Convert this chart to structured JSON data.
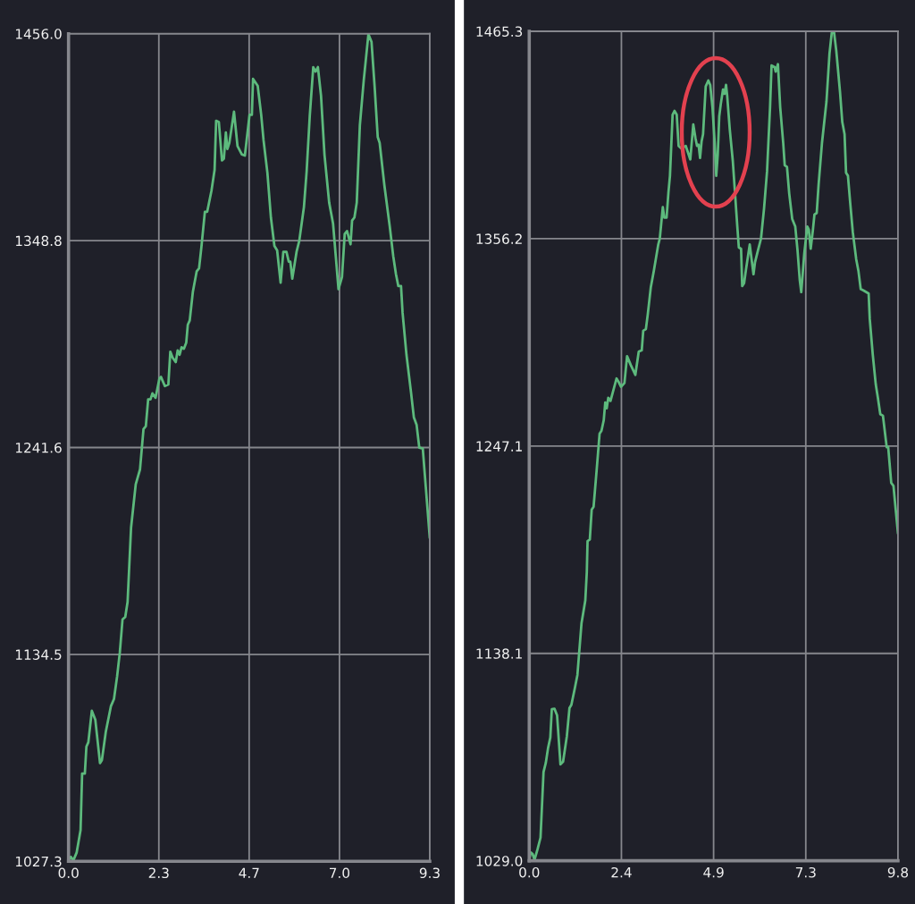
{
  "chart_data": [
    {
      "type": "line",
      "xlim": [
        0,
        9.3
      ],
      "ylim": [
        1027.3,
        1456.0
      ],
      "xticks": [
        {
          "value": 0,
          "label": "0.0"
        },
        {
          "value": 2.325,
          "label": "2.3"
        },
        {
          "value": 4.65,
          "label": "4.7"
        },
        {
          "value": 6.975,
          "label": "7.0"
        },
        9.3
      ],
      "yticks": [
        1027.3,
        {
          "value": 1134.475,
          "label": "1134.5"
        },
        {
          "value": 1241.65,
          "label": "1241.6"
        },
        {
          "value": 1348.825,
          "label": "1348.8"
        },
        {
          "value": 1456,
          "label": "1456.0"
        }
      ],
      "grid": true,
      "x": [
        0,
        0.06,
        0.12,
        0.21,
        0.31,
        0.35,
        0.42,
        0.46,
        0.51,
        0.6,
        0.69,
        0.81,
        0.86,
        0.96,
        1.09,
        1.17,
        1.25,
        1.32,
        1.39,
        1.46,
        1.52,
        1.61,
        1.73,
        1.84,
        1.93,
        1.99,
        2.05,
        2.11,
        2.16,
        2.24,
        2.34,
        2.38,
        2.48,
        2.57,
        2.62,
        2.68,
        2.76,
        2.81,
        2.86,
        2.91,
        2.97,
        3.03,
        3.07,
        3.12,
        3.2,
        3.3,
        3.36,
        3.42,
        3.51,
        3.57,
        3.68,
        3.76,
        3.8,
        3.87,
        3.95,
        4.0,
        4.05,
        4.09,
        4.14,
        4.26,
        4.35,
        4.46,
        4.54,
        4.66,
        4.72,
        4.75,
        4.87,
        4.96,
        5.02,
        5.12,
        5.21,
        5.3,
        5.37,
        5.46,
        5.53,
        5.61,
        5.67,
        5.71,
        5.76,
        5.87,
        5.94,
        6.06,
        6.13,
        6.21,
        6.3,
        6.36,
        6.42,
        6.5,
        6.59,
        6.71,
        6.81,
        6.88,
        6.95,
        7.04,
        7.11,
        7.17,
        7.26,
        7.3,
        7.36,
        7.42,
        7.5,
        7.6,
        7.72,
        7.8,
        7.88,
        7.96,
        8.01,
        8.13,
        8.27,
        8.36,
        8.43,
        8.49,
        8.56,
        8.6,
        8.7,
        8.82,
        8.89,
        8.96,
        9.03,
        9.12,
        9.3
      ],
      "series": [
        {
          "color": "#5dba7d",
          "values": [
            1028.0,
            1029.6,
            1027.6,
            1031.9,
            1043.5,
            1072.8,
            1072.8,
            1086.7,
            1089.0,
            1105.3,
            1100.6,
            1078.2,
            1079.8,
            1094.5,
            1107.6,
            1111.4,
            1123.0,
            1135.4,
            1152.6,
            1153.9,
            1161.6,
            1200.2,
            1222.6,
            1230.3,
            1251.2,
            1252.7,
            1266.6,
            1266.6,
            1269.7,
            1267.4,
            1277.4,
            1278.2,
            1273.5,
            1274.3,
            1291.3,
            1288.2,
            1285.9,
            1292.0,
            1289.7,
            1293.6,
            1292.8,
            1295.9,
            1305.2,
            1307.5,
            1322.2,
            1333.0,
            1334.5,
            1345.3,
            1363.8,
            1363.8,
            1374.7,
            1385.5,
            1410.9,
            1410.2,
            1390.4,
            1391.3,
            1404.8,
            1396.3,
            1399.4,
            1415.6,
            1397.8,
            1393.5,
            1392.9,
            1414.0,
            1414.0,
            1432.6,
            1429.0,
            1414.0,
            1400.9,
            1383.9,
            1360.8,
            1346.1,
            1343.8,
            1327.1,
            1343.0,
            1343.0,
            1337.9,
            1337.9,
            1329.1,
            1343.0,
            1348.7,
            1366.2,
            1384.7,
            1413.3,
            1438.7,
            1436.4,
            1438.7,
            1424.0,
            1393.2,
            1368.5,
            1357.7,
            1340.7,
            1323.7,
            1329.9,
            1352.3,
            1353.8,
            1346.9,
            1359.2,
            1360.8,
            1368.5,
            1408.6,
            1431.8,
            1455.7,
            1451.8,
            1428.7,
            1402.5,
            1399.4,
            1377.7,
            1356.1,
            1340.7,
            1331.4,
            1325.3,
            1325.3,
            1311.4,
            1289.7,
            1269.7,
            1257.3,
            1253.5,
            1241.6,
            1241.1,
            1194.8
          ]
        }
      ]
    },
    {
      "type": "line",
      "xlim": [
        0,
        9.8
      ],
      "ylim": [
        1029.0,
        1465.3
      ],
      "xticks": [
        {
          "value": 0,
          "label": "0.0"
        },
        {
          "value": 2.45,
          "label": "2.4"
        },
        4.9,
        {
          "value": 7.35,
          "label": "7.3"
        },
        9.8
      ],
      "yticks": [
        {
          "value": 1029,
          "label": "1029.0"
        },
        {
          "value": 1138.075,
          "label": "1138.1"
        },
        {
          "value": 1247.15,
          "label": "1247.1"
        },
        {
          "value": 1356.225,
          "label": "1356.2"
        },
        1465.3
      ],
      "grid": true,
      "x": [
        0,
        0.04,
        0.09,
        0.14,
        0.22,
        0.3,
        0.38,
        0.44,
        0.5,
        0.56,
        0.6,
        0.67,
        0.74,
        0.83,
        0.9,
        1.0,
        1.07,
        1.12,
        1.21,
        1.28,
        1.33,
        1.39,
        1.43,
        1.49,
        1.53,
        1.55,
        1.61,
        1.66,
        1.71,
        1.79,
        1.87,
        1.92,
        1.98,
        2.02,
        2.06,
        2.1,
        2.16,
        2.32,
        2.37,
        2.44,
        2.53,
        2.6,
        2.7,
        2.82,
        2.91,
        2.99,
        3.03,
        3.1,
        3.15,
        3.23,
        3.31,
        3.43,
        3.47,
        3.55,
        3.59,
        3.65,
        3.7,
        3.74,
        3.81,
        3.86,
        3.92,
        3.97,
        4.04,
        4.16,
        4.28,
        4.36,
        4.42,
        4.46,
        4.5,
        4.54,
        4.58,
        4.62,
        4.69,
        4.76,
        4.81,
        4.87,
        4.93,
        4.97,
        5.01,
        5.05,
        5.09,
        5.15,
        5.19,
        5.23,
        5.26,
        5.33,
        5.41,
        5.47,
        5.53,
        5.57,
        5.63,
        5.66,
        5.71,
        5.76,
        5.86,
        5.96,
        6.0,
        6.08,
        6.16,
        6.24,
        6.32,
        6.4,
        6.44,
        6.52,
        6.55,
        6.61,
        6.67,
        6.75,
        6.79,
        6.85,
        6.91,
        6.99,
        7.07,
        7.13,
        7.19,
        7.23,
        7.31,
        7.39,
        7.43,
        7.48,
        7.54,
        7.58,
        7.64,
        7.69,
        7.78,
        7.9,
        7.98,
        8.04,
        8.1,
        8.16,
        8.26,
        8.32,
        8.38,
        8.42,
        8.47,
        8.53,
        8.6,
        8.69,
        8.75,
        8.81,
        8.89,
        9.02,
        9.05,
        9.13,
        9.21,
        9.26,
        9.33,
        9.4,
        9.5,
        9.54,
        9.62,
        9.68,
        9.8
      ],
      "series": [
        {
          "color": "#5dba7d",
          "values": [
            1029.5,
            1033.4,
            1032.6,
            1029.5,
            1035.0,
            1041.2,
            1075.7,
            1080.5,
            1088.3,
            1093.8,
            1108.7,
            1109.0,
            1105.5,
            1079.7,
            1081.2,
            1094.6,
            1109.4,
            1111.0,
            1119.6,
            1126.7,
            1139.2,
            1154.1,
            1158.8,
            1165.9,
            1180.8,
            1197.2,
            1198.0,
            1213.7,
            1215.2,
            1234.1,
            1253.7,
            1255.2,
            1260.7,
            1270.1,
            1267.0,
            1272.5,
            1270.9,
            1282.7,
            1281.1,
            1278.3,
            1280.3,
            1294.4,
            1289.7,
            1284.6,
            1296.8,
            1297.5,
            1307.8,
            1308.6,
            1316.4,
            1330.5,
            1339.1,
            1353.2,
            1356.3,
            1372.8,
            1367.3,
            1367.3,
            1380.7,
            1389.3,
            1421.4,
            1423.4,
            1421.4,
            1405.0,
            1403.7,
            1405.0,
            1397.9,
            1416.3,
            1408.9,
            1405.0,
            1405.7,
            1398.7,
            1407.3,
            1411.2,
            1436.3,
            1439.4,
            1437.1,
            1425.3,
            1406.5,
            1389.3,
            1400.3,
            1420.6,
            1426.9,
            1434.7,
            1432.4,
            1437.1,
            1431.6,
            1413.6,
            1397.1,
            1379.9,
            1362.6,
            1351.6,
            1350.9,
            1331.3,
            1332.8,
            1339.9,
            1353.2,
            1337.5,
            1343.8,
            1350.1,
            1356.3,
            1372.0,
            1391.6,
            1425.3,
            1447.3,
            1446.5,
            1444.1,
            1448.0,
            1425.3,
            1406.5,
            1394.8,
            1394.0,
            1379.9,
            1366.5,
            1362.6,
            1350.1,
            1334.4,
            1328.1,
            1348.5,
            1362.6,
            1361.0,
            1350.9,
            1361.0,
            1368.9,
            1369.7,
            1384.6,
            1406.5,
            1428.5,
            1453.6,
            1464.5,
            1465.0,
            1455.1,
            1433.2,
            1417.5,
            1411.2,
            1390.9,
            1389.3,
            1375.2,
            1359.5,
            1345.4,
            1339.1,
            1329.7,
            1328.9,
            1327.4,
            1314.0,
            1295.2,
            1279.5,
            1273.3,
            1263.9,
            1263.1,
            1246.6,
            1246.6,
            1227.8,
            1226.2,
            1201.1
          ]
        }
      ]
    }
  ]
}
